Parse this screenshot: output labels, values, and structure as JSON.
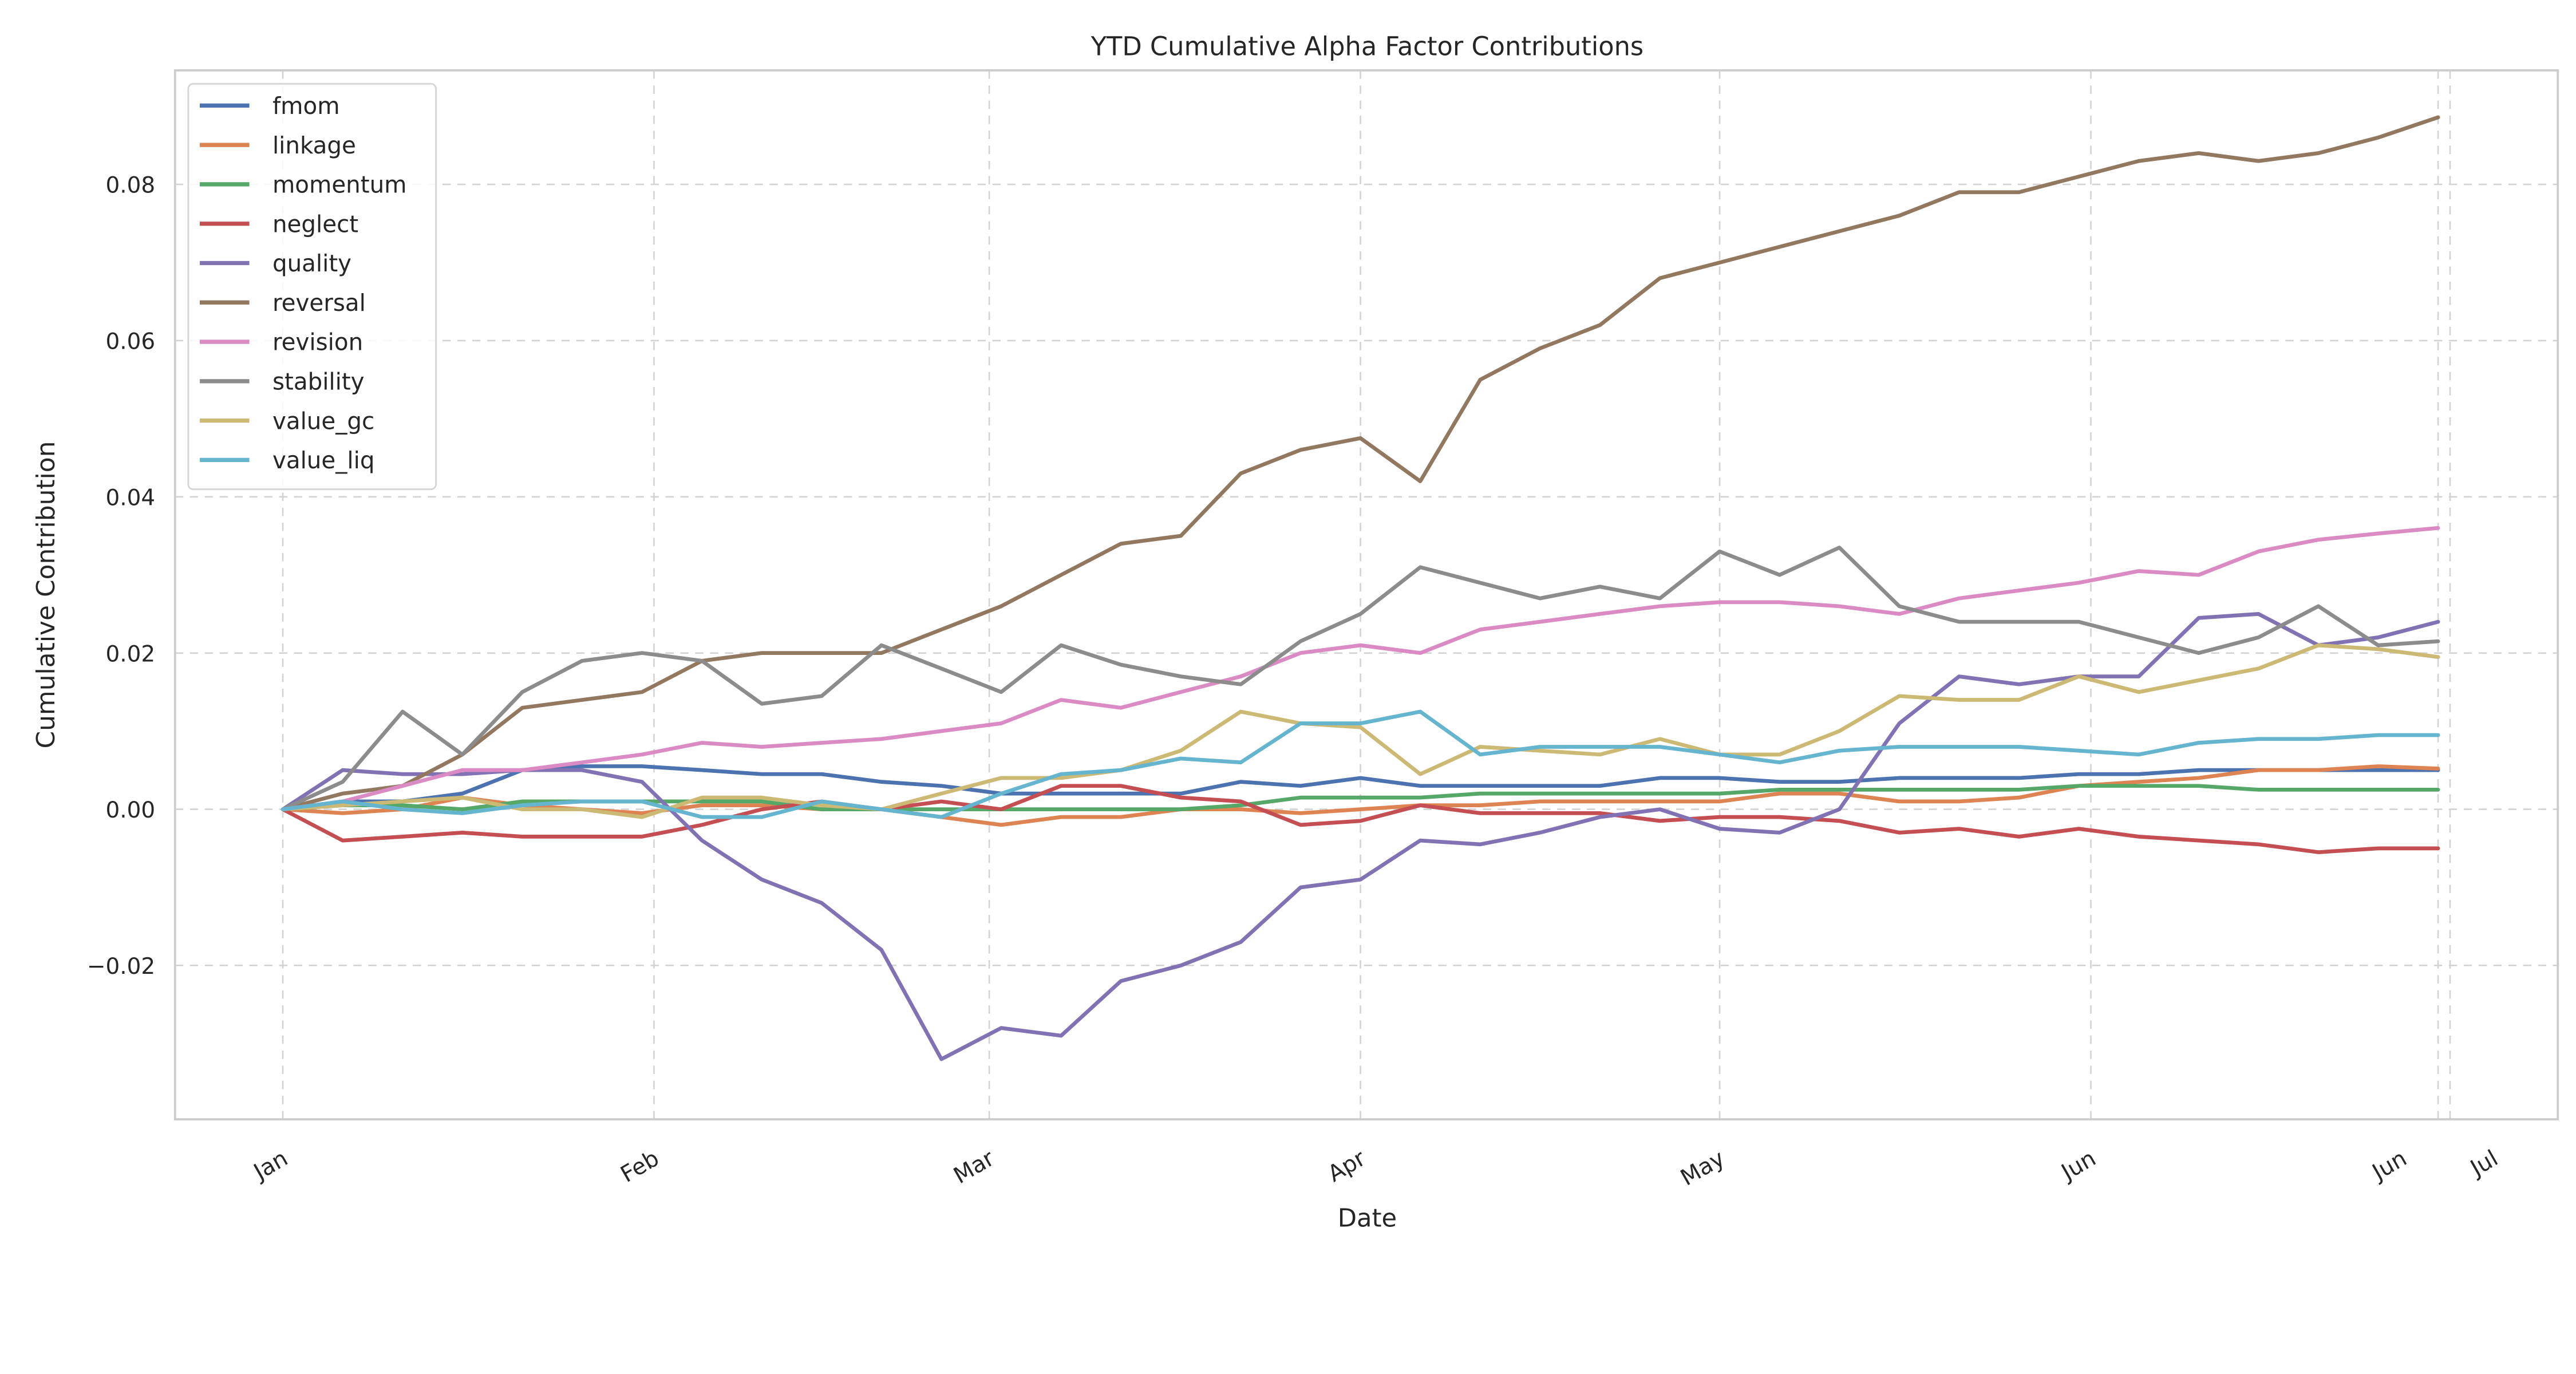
{
  "chart_data": {
    "type": "line",
    "title": "YTD Cumulative Alpha Factor Contributions",
    "xlabel": "Date",
    "ylabel": "Cumulative Contribution",
    "x_unit": "day of year (Jan 1 = 0)",
    "xlim": [
      -9,
      190
    ],
    "ylim": [
      -0.0397,
      0.0946
    ],
    "grid": true,
    "legend_position": "top-left",
    "x_ticks": [
      {
        "day": 0,
        "label": "Jan"
      },
      {
        "day": 31,
        "label": "Feb"
      },
      {
        "day": 59,
        "label": "Mar"
      },
      {
        "day": 90,
        "label": "Apr"
      },
      {
        "day": 120,
        "label": "May"
      },
      {
        "day": 151,
        "label": "Jun"
      },
      {
        "day": 180,
        "label": "Jun"
      },
      {
        "day": 181,
        "label": "Jul"
      }
    ],
    "y_ticks": [
      {
        "value": -0.02,
        "label": "−0.02"
      },
      {
        "value": 0.0,
        "label": "0.00"
      },
      {
        "value": 0.02,
        "label": "0.02"
      },
      {
        "value": 0.04,
        "label": "0.04"
      },
      {
        "value": 0.06,
        "label": "0.06"
      },
      {
        "value": 0.08,
        "label": "0.08"
      }
    ],
    "x": [
      0,
      5,
      10,
      15,
      20,
      25,
      30,
      35,
      40,
      45,
      50,
      55,
      60,
      65,
      70,
      75,
      80,
      85,
      90,
      95,
      100,
      105,
      110,
      115,
      120,
      125,
      130,
      135,
      140,
      145,
      150,
      155,
      160,
      165,
      170,
      175,
      180
    ],
    "series": [
      {
        "name": "fmom",
        "color": "#4c72b0",
        "values": [
          0,
          0.001,
          0.001,
          0.002,
          0.005,
          0.0055,
          0.0055,
          0.005,
          0.0045,
          0.0045,
          0.0035,
          0.003,
          0.002,
          0.002,
          0.002,
          0.002,
          0.0035,
          0.003,
          0.004,
          0.003,
          0.003,
          0.003,
          0.003,
          0.004,
          0.004,
          0.0035,
          0.0035,
          0.004,
          0.004,
          0.004,
          0.0045,
          0.0045,
          0.005,
          0.005,
          0.005,
          0.005,
          0.005
        ]
      },
      {
        "name": "linkage",
        "color": "#dd8452",
        "values": [
          0,
          -0.0005,
          0,
          0.0015,
          0.0005,
          0,
          -0.0005,
          0.0005,
          0.0005,
          0,
          0,
          -0.001,
          -0.002,
          -0.001,
          -0.001,
          0,
          0,
          -0.0005,
          0,
          0.0005,
          0.0005,
          0.001,
          0.001,
          0.001,
          0.001,
          0.002,
          0.002,
          0.001,
          0.001,
          0.0015,
          0.003,
          0.0035,
          0.004,
          0.005,
          0.005,
          0.0055,
          0.0052
        ]
      },
      {
        "name": "momentum",
        "color": "#55a868",
        "values": [
          0,
          0.0005,
          0.0005,
          0,
          0.001,
          0.001,
          0.001,
          0.001,
          0.001,
          0,
          0,
          0,
          0,
          0,
          0,
          0,
          0.0005,
          0.0015,
          0.0015,
          0.0015,
          0.002,
          0.002,
          0.002,
          0.002,
          0.002,
          0.0025,
          0.0025,
          0.0025,
          0.0025,
          0.0025,
          0.003,
          0.003,
          0.003,
          0.0025,
          0.0025,
          0.0025,
          0.0025
        ]
      },
      {
        "name": "neglect",
        "color": "#c44e52",
        "values": [
          0,
          -0.004,
          -0.0035,
          -0.003,
          -0.0035,
          -0.0035,
          -0.0035,
          -0.002,
          0,
          0.001,
          0,
          0.001,
          0,
          0.003,
          0.003,
          0.0015,
          0.001,
          -0.002,
          -0.0015,
          0.0005,
          -0.0005,
          -0.0005,
          -0.0005,
          -0.0015,
          -0.001,
          -0.001,
          -0.0015,
          -0.003,
          -0.0025,
          -0.0035,
          -0.0025,
          -0.0035,
          -0.004,
          -0.0045,
          -0.0055,
          -0.005,
          -0.005
        ]
      },
      {
        "name": "quality",
        "color": "#8172b3",
        "values": [
          0,
          0.005,
          0.0045,
          0.0045,
          0.005,
          0.005,
          0.0035,
          -0.004,
          -0.009,
          -0.012,
          -0.018,
          -0.032,
          -0.028,
          -0.029,
          -0.022,
          -0.02,
          -0.017,
          -0.01,
          -0.009,
          -0.004,
          -0.0045,
          -0.003,
          -0.001,
          0,
          -0.0025,
          -0.003,
          0,
          0.011,
          0.017,
          0.016,
          0.017,
          0.017,
          0.0245,
          0.025,
          0.021,
          0.022,
          0.024
        ]
      },
      {
        "name": "reversal",
        "color": "#937860",
        "values": [
          0,
          0.002,
          0.003,
          0.007,
          0.013,
          0.014,
          0.015,
          0.019,
          0.02,
          0.02,
          0.02,
          0.023,
          0.026,
          0.03,
          0.034,
          0.035,
          0.043,
          0.046,
          0.0475,
          0.042,
          0.055,
          0.059,
          0.062,
          0.068,
          0.07,
          0.072,
          0.074,
          0.076,
          0.079,
          0.079,
          0.081,
          0.083,
          0.084,
          0.083,
          0.084,
          0.086,
          0.0886
        ]
      },
      {
        "name": "revision",
        "color": "#da8bc3",
        "values": [
          0,
          0.001,
          0.003,
          0.005,
          0.005,
          0.006,
          0.007,
          0.0085,
          0.008,
          0.0085,
          0.009,
          0.01,
          0.011,
          0.014,
          0.013,
          0.015,
          0.017,
          0.02,
          0.021,
          0.02,
          0.023,
          0.024,
          0.025,
          0.026,
          0.0265,
          0.0265,
          0.026,
          0.025,
          0.027,
          0.028,
          0.029,
          0.0305,
          0.03,
          0.033,
          0.0345,
          0.0353,
          0.036
        ]
      },
      {
        "name": "stability",
        "color": "#8c8c8c",
        "values": [
          0,
          0.0035,
          0.0125,
          0.007,
          0.015,
          0.019,
          0.02,
          0.019,
          0.0135,
          0.0145,
          0.021,
          0.018,
          0.015,
          0.021,
          0.0185,
          0.017,
          0.016,
          0.0215,
          0.025,
          0.031,
          0.029,
          0.027,
          0.0285,
          0.027,
          0.033,
          0.03,
          0.0335,
          0.026,
          0.024,
          0.024,
          0.024,
          0.022,
          0.02,
          0.022,
          0.026,
          0.021,
          0.0215
        ]
      },
      {
        "name": "value_gc",
        "color": "#ccb974",
        "values": [
          0,
          0.0005,
          0.001,
          0.0015,
          0,
          0,
          -0.001,
          0.0015,
          0.0015,
          0.0005,
          0,
          0.002,
          0.004,
          0.004,
          0.005,
          0.0075,
          0.0125,
          0.011,
          0.0105,
          0.0045,
          0.008,
          0.0075,
          0.007,
          0.009,
          0.007,
          0.007,
          0.01,
          0.0145,
          0.014,
          0.014,
          0.017,
          0.015,
          0.0165,
          0.018,
          0.021,
          0.0205,
          0.0195
        ]
      },
      {
        "name": "value_liq",
        "color": "#64b5cd",
        "values": [
          0,
          0.001,
          0,
          -0.0005,
          0.0005,
          0.001,
          0.001,
          -0.001,
          -0.001,
          0.001,
          0,
          -0.001,
          0.002,
          0.0045,
          0.005,
          0.0065,
          0.006,
          0.011,
          0.011,
          0.0125,
          0.007,
          0.008,
          0.008,
          0.008,
          0.007,
          0.006,
          0.0075,
          0.008,
          0.008,
          0.008,
          0.0075,
          0.007,
          0.0085,
          0.009,
          0.009,
          0.0095,
          0.0095
        ]
      }
    ]
  }
}
